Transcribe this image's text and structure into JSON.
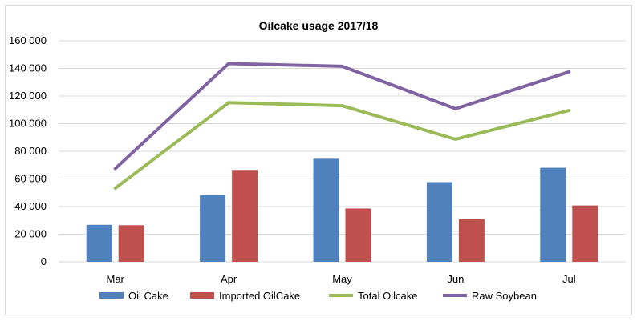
{
  "chart_data": {
    "type": "bar",
    "title": "Oilcake usage 2017/18",
    "categories": [
      "Mar",
      "Apr",
      "May",
      "Jun",
      "Jul"
    ],
    "ylim": [
      0,
      160000
    ],
    "yticks": [
      0,
      20000,
      40000,
      60000,
      80000,
      100000,
      120000,
      140000,
      160000
    ],
    "ytick_labels": [
      "0",
      "20 000",
      "40 000",
      "60 000",
      "80 000",
      "100 000",
      "120 000",
      "140 000",
      "160 000"
    ],
    "grid": true,
    "legend": "bottom",
    "series": [
      {
        "name": "Oil Cake",
        "kind": "bar",
        "color": "#4f81bd",
        "values": [
          26800,
          48300,
          74600,
          57700,
          68100
        ]
      },
      {
        "name": "Imported OilCake",
        "kind": "bar",
        "color": "#c0504d",
        "values": [
          26500,
          66500,
          38600,
          31000,
          40800
        ]
      },
      {
        "name": "Total Oilcake",
        "kind": "line",
        "color": "#9bbb59",
        "values": [
          53300,
          115200,
          113000,
          88700,
          109500
        ]
      },
      {
        "name": "Raw Soybean",
        "kind": "line",
        "color": "#8064a2",
        "values": [
          67500,
          143500,
          141500,
          110800,
          137500
        ]
      }
    ]
  }
}
